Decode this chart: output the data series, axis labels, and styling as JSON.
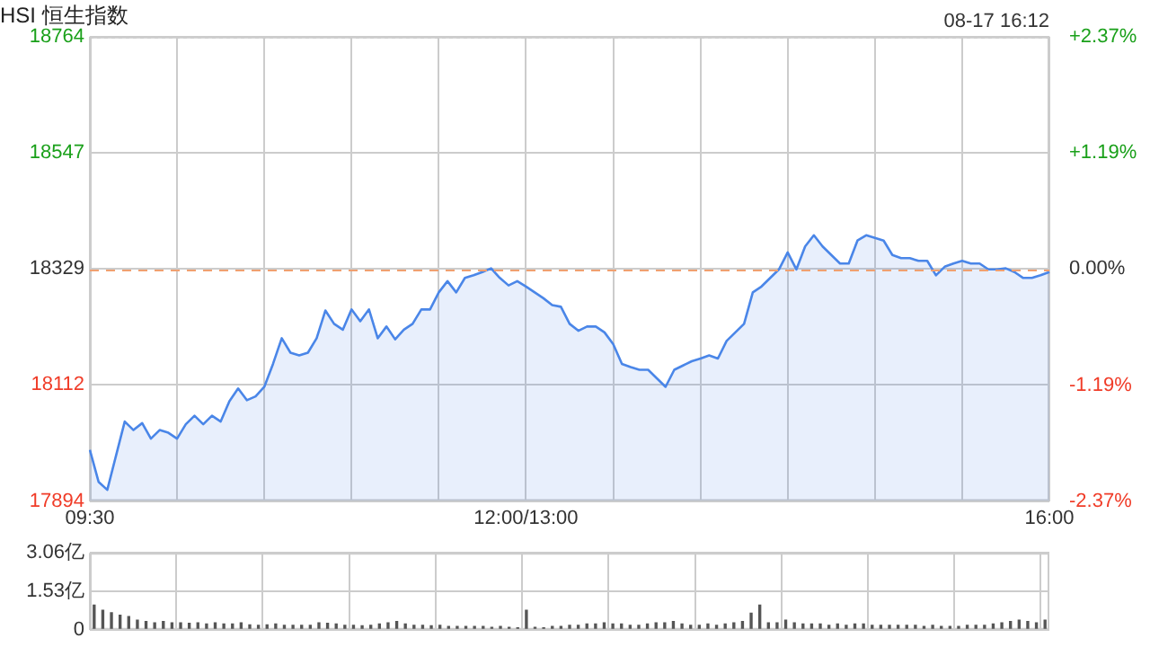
{
  "chart_data": [
    {
      "type": "area",
      "title": "HSI 恒生指数",
      "annotations": [
        "08-17 16:12"
      ],
      "categories": [
        "09:30",
        null,
        null,
        null,
        null,
        null,
        null,
        null,
        null,
        null,
        null,
        null,
        null,
        null,
        null,
        null,
        null,
        null,
        null,
        null,
        null,
        null,
        null,
        null,
        null,
        null,
        null,
        null,
        null,
        null,
        null,
        null,
        null,
        null,
        null,
        null,
        null,
        null,
        null,
        null,
        null,
        null,
        null,
        null,
        null,
        null,
        null,
        null,
        null,
        null,
        "12:00/13:00",
        null,
        null,
        null,
        null,
        null,
        null,
        null,
        null,
        null,
        null,
        null,
        null,
        null,
        null,
        null,
        null,
        null,
        null,
        null,
        null,
        null,
        null,
        null,
        null,
        null,
        null,
        null,
        null,
        null,
        null,
        null,
        null,
        null,
        null,
        null,
        null,
        null,
        null,
        null,
        null,
        null,
        null,
        null,
        null,
        null,
        null,
        null,
        null,
        null,
        null,
        null,
        null,
        null,
        null,
        null,
        null,
        null,
        null,
        null,
        "16:00"
      ],
      "series": [
        {
          "color": "#4a86e8",
          "values": [
            17990,
            17930,
            17915,
            17979,
            18043,
            18027,
            18040,
            18011,
            18027,
            18022,
            18011,
            18038,
            18054,
            18038,
            18054,
            18043,
            18081,
            18105,
            18083,
            18090,
            18108,
            18151,
            18199,
            18172,
            18167,
            18172,
            18199,
            18251,
            18226,
            18215,
            18253,
            18231,
            18253,
            18199,
            18221,
            18197,
            18215,
            18226,
            18253,
            18253,
            18285,
            18306,
            18285,
            18312,
            18317,
            18323,
            18330,
            18312,
            18298,
            18306,
            18296,
            18285,
            18274,
            18261,
            18258,
            18226,
            18213,
            18221,
            18221,
            18210,
            18188,
            18151,
            18145,
            18140,
            18140,
            18124,
            18108,
            18140,
            18148,
            18156,
            18161,
            18167,
            18161,
            18194,
            18210,
            18226,
            18285,
            18296,
            18312,
            18328,
            18360,
            18328,
            18371,
            18392,
            18371,
            18355,
            18339,
            18339,
            18382,
            18392,
            18387,
            18382,
            18355,
            18349,
            18349,
            18344,
            18344,
            18317,
            18333,
            18339,
            18344,
            18339,
            18339,
            18328,
            18328,
            18330,
            18323,
            18312,
            18312,
            18317,
            18323
          ]
        }
      ],
      "ylim": [
        17894,
        18764
      ],
      "yticks": [
        17894,
        18112,
        18329,
        18547,
        18764
      ],
      "y2lim": [
        -2.37,
        2.37
      ],
      "y2ticks": [
        {
          "value": -2.37,
          "label": "-2.37%"
        },
        {
          "value": -1.19,
          "label": "-1.19%"
        },
        {
          "value": 0,
          "label": "0.00%"
        },
        {
          "value": 1.19,
          "label": "+1.19%"
        },
        {
          "value": 2.37,
          "label": "+2.37%"
        }
      ],
      "ref_lines": [
        {
          "axis": "y",
          "value": 18329,
          "color": "#f0a070",
          "line_style": "dashed"
        }
      ],
      "grid": true,
      "marker": "none"
    },
    {
      "type": "bar",
      "categories": [
        null,
        null,
        null,
        null,
        null,
        null,
        null,
        null,
        null,
        null,
        null,
        null,
        null,
        null,
        null,
        null,
        null,
        null,
        null,
        null,
        null,
        null,
        null,
        null,
        null,
        null,
        null,
        null,
        null,
        null,
        null,
        null,
        null,
        null,
        null,
        null,
        null,
        null,
        null,
        null,
        null,
        null,
        null,
        null,
        null,
        null,
        null,
        null,
        null,
        null,
        null,
        null,
        null,
        null,
        null,
        null,
        null,
        null,
        null,
        null,
        null,
        null,
        null,
        null,
        null,
        null,
        null,
        null,
        null,
        null,
        null,
        null,
        null,
        null,
        null,
        null,
        null,
        null,
        null,
        null,
        null,
        null,
        null,
        null,
        null,
        null,
        null,
        null,
        null,
        null,
        null,
        null,
        null,
        null,
        null,
        null,
        null,
        null,
        null,
        null,
        null,
        null,
        null,
        null,
        null,
        null,
        null,
        null,
        null,
        null,
        null
      ],
      "values": [
        1.0,
        0.8,
        0.7,
        0.6,
        0.55,
        0.4,
        0.35,
        0.3,
        0.35,
        0.3,
        0.3,
        0.28,
        0.3,
        0.25,
        0.3,
        0.25,
        0.25,
        0.3,
        0.22,
        0.2,
        0.22,
        0.25,
        0.2,
        0.2,
        0.2,
        0.2,
        0.3,
        0.28,
        0.25,
        0.2,
        0.2,
        0.18,
        0.2,
        0.25,
        0.3,
        0.35,
        0.25,
        0.2,
        0.2,
        0.18,
        0.2,
        0.15,
        0.15,
        0.15,
        0.15,
        0.15,
        0.12,
        0.15,
        0.12,
        0.1,
        0.8,
        0.12,
        0.1,
        0.15,
        0.15,
        0.2,
        0.2,
        0.25,
        0.25,
        0.3,
        0.25,
        0.25,
        0.2,
        0.2,
        0.25,
        0.3,
        0.3,
        0.35,
        0.25,
        0.2,
        0.2,
        0.25,
        0.2,
        0.25,
        0.3,
        0.35,
        0.68,
        1.0,
        0.3,
        0.3,
        0.4,
        0.3,
        0.25,
        0.25,
        0.25,
        0.2,
        0.25,
        0.2,
        0.25,
        0.25,
        0.2,
        0.2,
        0.2,
        0.2,
        0.2,
        0.2,
        0.15,
        0.2,
        0.15,
        0.15,
        0.15,
        0.2,
        0.2,
        0.2,
        0.25,
        0.3,
        0.35,
        0.4,
        0.35,
        0.3,
        0.4
      ],
      "color": "#555555",
      "ylim": [
        0,
        3.06
      ],
      "yticks": [
        {
          "value": 0,
          "label": "0"
        },
        {
          "value": 1.53,
          "label": "1.53亿"
        },
        {
          "value": 3.06,
          "label": "3.06亿"
        }
      ],
      "grid": true,
      "tick_labels": "y"
    }
  ]
}
